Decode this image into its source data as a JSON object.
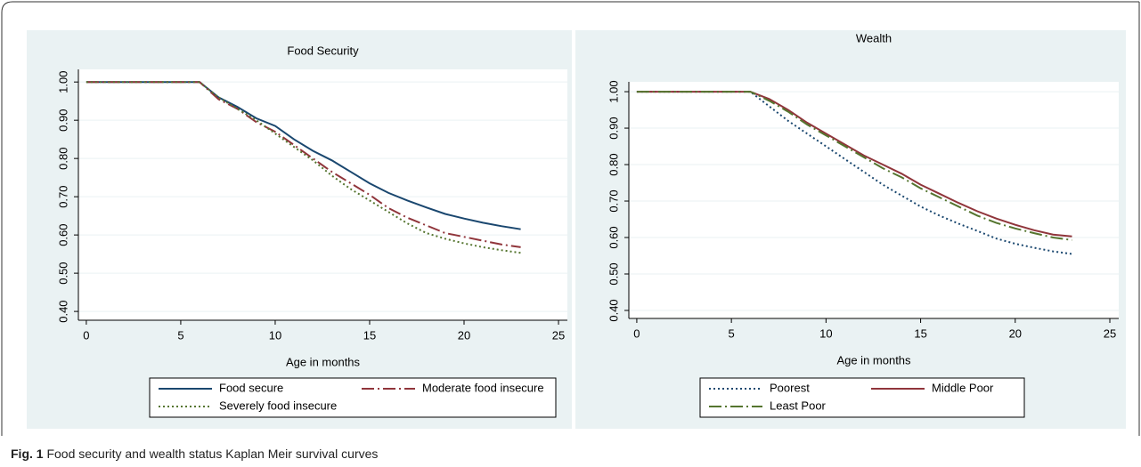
{
  "chart_data": [
    {
      "type": "line",
      "title": "Food Security",
      "x_label": "Age in months",
      "x": [
        0,
        6,
        7,
        8,
        9,
        10,
        11,
        12,
        13,
        14,
        15,
        16,
        17,
        18,
        19,
        20,
        21,
        22,
        23
      ],
      "series": [
        {
          "name": "Food secure",
          "color": "#1a476f",
          "style": "solid",
          "values": [
            1,
            1,
            0.96,
            0.935,
            0.905,
            0.885,
            0.85,
            0.82,
            0.795,
            0.765,
            0.735,
            0.71,
            0.69,
            0.672,
            0.655,
            0.643,
            0.632,
            0.623,
            0.615
          ]
        },
        {
          "name": "Moderate food insecure",
          "color": "#90353b",
          "style": "dashdot",
          "values": [
            1,
            1,
            0.955,
            0.93,
            0.895,
            0.87,
            0.835,
            0.8,
            0.765,
            0.735,
            0.705,
            0.67,
            0.645,
            0.625,
            0.605,
            0.595,
            0.585,
            0.575,
            0.568
          ]
        },
        {
          "name": "Severely food insecure",
          "color": "#55752f",
          "style": "dot",
          "values": [
            1,
            1,
            0.96,
            0.93,
            0.9,
            0.865,
            0.83,
            0.795,
            0.755,
            0.72,
            0.69,
            0.66,
            0.63,
            0.605,
            0.59,
            0.578,
            0.568,
            0.56,
            0.553
          ]
        }
      ],
      "xlim": [
        -0.42,
        25.47
      ],
      "xticks": [
        0,
        5,
        10,
        15,
        20,
        25
      ],
      "ylim": [
        0.377,
        1.033
      ],
      "yticks": [
        {
          "value": 0.4,
          "label": "0.40"
        },
        {
          "value": 0.5,
          "label": "0.50"
        },
        {
          "value": 0.6,
          "label": "0.60"
        },
        {
          "value": 0.7,
          "label": "0.70"
        },
        {
          "value": 0.8,
          "label": "0.80"
        },
        {
          "value": 0.9,
          "label": "0.90"
        },
        {
          "value": 1,
          "label": "1.00"
        }
      ],
      "grid": true,
      "legend": "bottom"
    },
    {
      "type": "line",
      "title": "Wealth",
      "x_label": "Age in months",
      "x": [
        0,
        6,
        7,
        8,
        9,
        10,
        11,
        12,
        13,
        14,
        15,
        16,
        17,
        18,
        19,
        20,
        21,
        22,
        23
      ],
      "series": [
        {
          "name": "Poorest",
          "color": "#1a476f",
          "style": "dot",
          "values": [
            1,
            1,
            0.96,
            0.92,
            0.885,
            0.85,
            0.815,
            0.78,
            0.745,
            0.715,
            0.685,
            0.66,
            0.638,
            0.618,
            0.597,
            0.583,
            0.572,
            0.562,
            0.555
          ]
        },
        {
          "name": "Middle Poor",
          "color": "#90353b",
          "style": "solid",
          "values": [
            1,
            1,
            0.98,
            0.95,
            0.915,
            0.885,
            0.855,
            0.825,
            0.8,
            0.775,
            0.745,
            0.72,
            0.695,
            0.672,
            0.652,
            0.635,
            0.62,
            0.608,
            0.603
          ]
        },
        {
          "name": "Least Poor",
          "color": "#55752f",
          "style": "dashdot",
          "values": [
            1,
            1,
            0.975,
            0.945,
            0.91,
            0.88,
            0.85,
            0.82,
            0.79,
            0.765,
            0.735,
            0.71,
            0.685,
            0.66,
            0.64,
            0.625,
            0.612,
            0.6,
            0.593
          ]
        }
      ],
      "xlim": [
        -0.42,
        25.47
      ],
      "xticks": [
        0,
        5,
        10,
        15,
        20,
        25
      ],
      "ylim": [
        0.378,
        1.027
      ],
      "yticks": [
        {
          "value": 0.4,
          "label": "0.40"
        },
        {
          "value": 0.5,
          "label": "0.50"
        },
        {
          "value": 0.6,
          "label": "0.60"
        },
        {
          "value": 0.7,
          "label": "0.70"
        },
        {
          "value": 0.8,
          "label": "0.80"
        },
        {
          "value": 0.9,
          "label": "0.90"
        },
        {
          "value": 1,
          "label": "1.00"
        }
      ],
      "grid": true,
      "legend": "bottom"
    }
  ],
  "caption": {
    "label": "Fig. 1",
    "text": "Food security and wealth status Kaplan Meir survival curves"
  }
}
